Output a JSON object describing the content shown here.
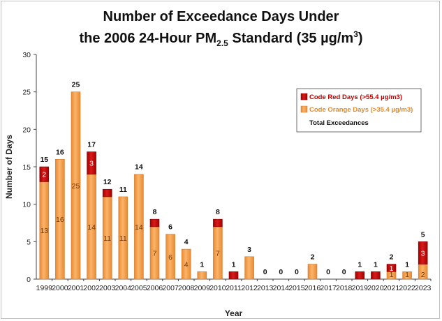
{
  "title_line1": "Number of Exceedance Days Under",
  "title_line2_pre": "the 2006 24-Hour PM",
  "title_line2_sub": "2.5",
  "title_line2_mid": " Standard (35 µg/m",
  "title_line2_sup": "3",
  "title_line2_post": ")",
  "chart_data": {
    "type": "bar",
    "stacked": true,
    "categories": [
      "1999",
      "2000",
      "2001",
      "2002",
      "2003",
      "2004",
      "2005",
      "2006",
      "2007",
      "2008",
      "2009",
      "2010",
      "2011",
      "2012",
      "2013",
      "2014",
      "2015",
      "2016",
      "2017",
      "2018",
      "2019",
      "2020",
      "2021",
      "2022",
      "2023"
    ],
    "series": [
      {
        "name": "Code Orange Days (>35.4 µg/m3)",
        "color": "#f6a14b",
        "values": [
          13,
          16,
          25,
          14,
          11,
          11,
          14,
          7,
          6,
          4,
          1,
          7,
          0,
          3,
          0,
          0,
          0,
          2,
          0,
          0,
          0,
          0,
          1,
          1,
          2
        ]
      },
      {
        "name": "Code Red Days (>55.4 µg/m3)",
        "color": "#c00000",
        "values": [
          2,
          0,
          0,
          3,
          1,
          0,
          0,
          1,
          0,
          0,
          0,
          1,
          1,
          0,
          0,
          0,
          0,
          0,
          0,
          0,
          1,
          1,
          1,
          0,
          3
        ]
      }
    ],
    "totals_name": "Total Exceedances",
    "totals": [
      15,
      16,
      25,
      17,
      12,
      11,
      14,
      8,
      6,
      4,
      1,
      8,
      1,
      3,
      0,
      0,
      0,
      2,
      0,
      0,
      1,
      1,
      2,
      1,
      5
    ],
    "orange_labels": [
      "13",
      "16",
      "25",
      "14",
      "11",
      "11",
      "14",
      "7",
      "6",
      "4",
      "",
      "7",
      "",
      "",
      "",
      "",
      "",
      "",
      "",
      "",
      "",
      "",
      "1",
      "1",
      "2"
    ],
    "red_labels": [
      "2",
      "",
      "",
      "3",
      "",
      "",
      "",
      "",
      "",
      "",
      "",
      "",
      "",
      "",
      "",
      "",
      "",
      "",
      "",
      "",
      "",
      "",
      "1",
      "",
      "3"
    ],
    "xlabel": "Year",
    "ylabel": "Number of Days",
    "ylim": [
      0,
      30
    ],
    "yticks": [
      0,
      5,
      10,
      15,
      20,
      25,
      30
    ],
    "legend_position": "top-right",
    "grid": false
  }
}
